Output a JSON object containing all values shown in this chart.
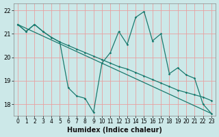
{
  "xlabel": "Humidex (Indice chaleur)",
  "bg_color": "#cce8e8",
  "grid_color": "#e8a0a0",
  "line_color": "#1a7a6e",
  "xlim": [
    -0.5,
    23.5
  ],
  "ylim": [
    17.5,
    22.3
  ],
  "yticks": [
    18,
    19,
    20,
    21,
    22
  ],
  "xticks": [
    0,
    1,
    2,
    3,
    4,
    5,
    6,
    7,
    8,
    9,
    10,
    11,
    12,
    13,
    14,
    15,
    16,
    17,
    18,
    19,
    20,
    21,
    22,
    23
  ],
  "series_straight": {
    "x": [
      0,
      23
    ],
    "y": [
      21.4,
      17.6
    ]
  },
  "series_smooth": {
    "x": [
      0,
      1,
      2,
      3,
      4,
      5,
      6,
      7,
      8,
      9,
      10,
      11,
      12,
      13,
      14,
      15,
      16,
      17,
      18,
      19,
      20,
      21,
      22,
      23
    ],
    "y": [
      21.4,
      21.1,
      21.4,
      21.1,
      20.85,
      20.65,
      20.5,
      20.35,
      20.2,
      20.05,
      19.9,
      19.75,
      19.6,
      19.5,
      19.35,
      19.2,
      19.05,
      18.9,
      18.75,
      18.6,
      18.5,
      18.4,
      18.3,
      18.15
    ]
  },
  "series_jagged": {
    "x": [
      0,
      1,
      2,
      3,
      4,
      5,
      6,
      7,
      8,
      9,
      10,
      11,
      12,
      13,
      14,
      15,
      16,
      17,
      18,
      19,
      20,
      21,
      22,
      23
    ],
    "y": [
      21.4,
      21.1,
      21.4,
      21.1,
      20.85,
      20.65,
      18.7,
      18.35,
      18.25,
      17.65,
      19.75,
      20.2,
      21.1,
      20.55,
      21.7,
      21.95,
      20.7,
      21.0,
      19.3,
      19.55,
      19.25,
      19.1,
      18.0,
      17.6
    ]
  }
}
